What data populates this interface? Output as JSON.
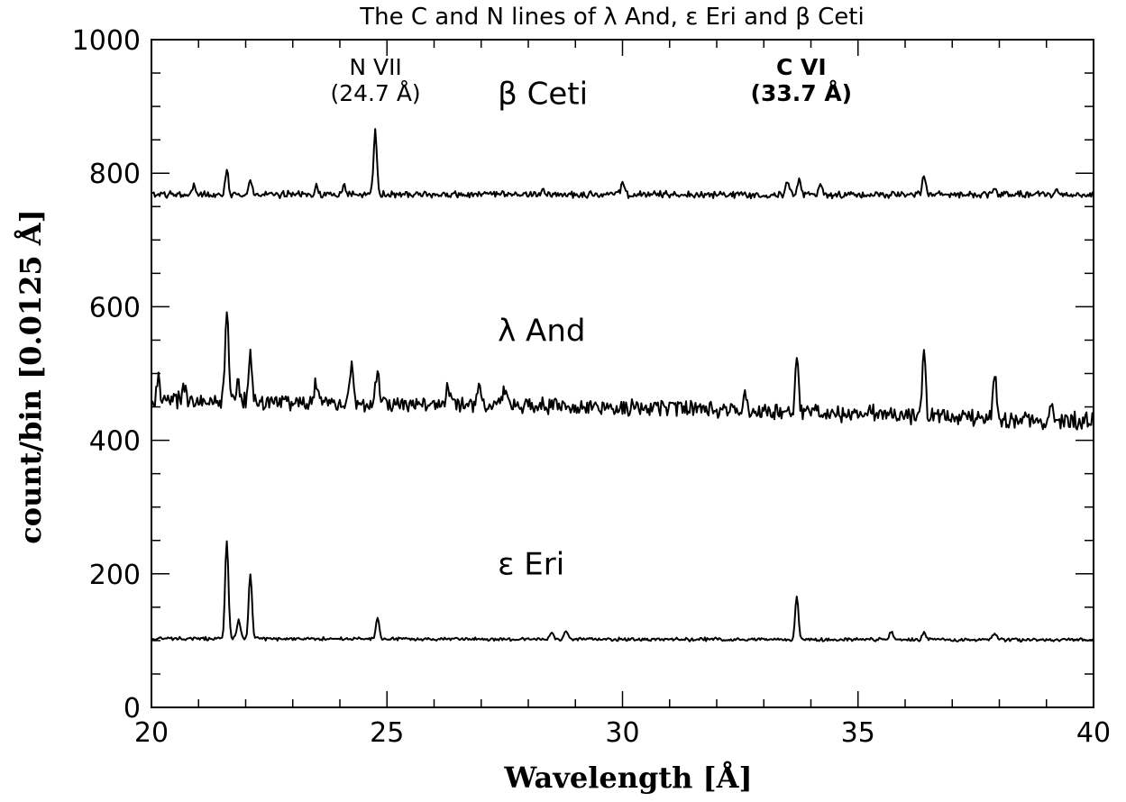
{
  "chart_data": {
    "type": "line",
    "title": "The C and N lines of λ And, ε Eri and β Ceti",
    "xlabel": "Wavelength [Å]",
    "ylabel": "count/bin [0.0125 Å]",
    "xlim": [
      20,
      40
    ],
    "ylim": [
      0,
      1000
    ],
    "x_major_ticks": [
      20,
      25,
      30,
      35,
      40
    ],
    "y_major_ticks": [
      0,
      200,
      400,
      600,
      800,
      1000
    ],
    "x_tick_labels": [
      "20",
      "25",
      "30",
      "35",
      "40"
    ],
    "y_tick_labels": [
      "0",
      "200",
      "400",
      "600",
      "800",
      "1000"
    ],
    "grid": false,
    "annotations": [
      {
        "line1": "N VII",
        "line2": "(24.7 Å)",
        "x": 24.7
      },
      {
        "line1": "C VI",
        "line2": "(33.7 Å)",
        "x": 33.7
      }
    ],
    "series": [
      {
        "name": "β Ceti",
        "label_pos": [
          28.5,
          920
        ],
        "baseline": [
          [
            20,
            768
          ],
          [
            40,
            768
          ]
        ],
        "noise": 4,
        "peaks": [
          [
            20.9,
            783
          ],
          [
            21.6,
            805
          ],
          [
            22.1,
            788
          ],
          [
            23.5,
            782
          ],
          [
            24.1,
            780
          ],
          [
            24.75,
            862
          ],
          [
            28.3,
            776
          ],
          [
            30.0,
            785
          ],
          [
            33.5,
            787
          ],
          [
            33.75,
            790
          ],
          [
            34.2,
            782
          ],
          [
            36.4,
            795
          ],
          [
            37.9,
            777
          ],
          [
            39.2,
            774
          ]
        ]
      },
      {
        "name": "λ And",
        "label_pos": [
          28.5,
          565
        ],
        "baseline": [
          [
            20,
            460
          ],
          [
            25,
            455
          ],
          [
            30,
            450
          ],
          [
            35,
            440
          ],
          [
            40,
            428
          ]
        ],
        "noise": 10,
        "peaks": [
          [
            20.15,
            490
          ],
          [
            20.7,
            482
          ],
          [
            21.6,
            602
          ],
          [
            21.85,
            485
          ],
          [
            22.1,
            530
          ],
          [
            23.5,
            492
          ],
          [
            24.25,
            507
          ],
          [
            24.8,
            505
          ],
          [
            26.3,
            485
          ],
          [
            26.95,
            488
          ],
          [
            27.5,
            478
          ],
          [
            32.6,
            470
          ],
          [
            33.7,
            533
          ],
          [
            36.4,
            535
          ],
          [
            37.9,
            497
          ],
          [
            39.1,
            455
          ]
        ]
      },
      {
        "name": "ε Eri",
        "label_pos": [
          28.5,
          215
        ],
        "baseline": [
          [
            20,
            103
          ],
          [
            40,
            101
          ]
        ],
        "noise": 2,
        "peaks": [
          [
            21.6,
            250
          ],
          [
            21.85,
            132
          ],
          [
            22.1,
            199
          ],
          [
            24.8,
            135
          ],
          [
            28.5,
            113
          ],
          [
            28.8,
            115
          ],
          [
            33.7,
            167
          ],
          [
            35.7,
            114
          ],
          [
            36.4,
            113
          ],
          [
            37.9,
            113
          ]
        ]
      }
    ]
  }
}
